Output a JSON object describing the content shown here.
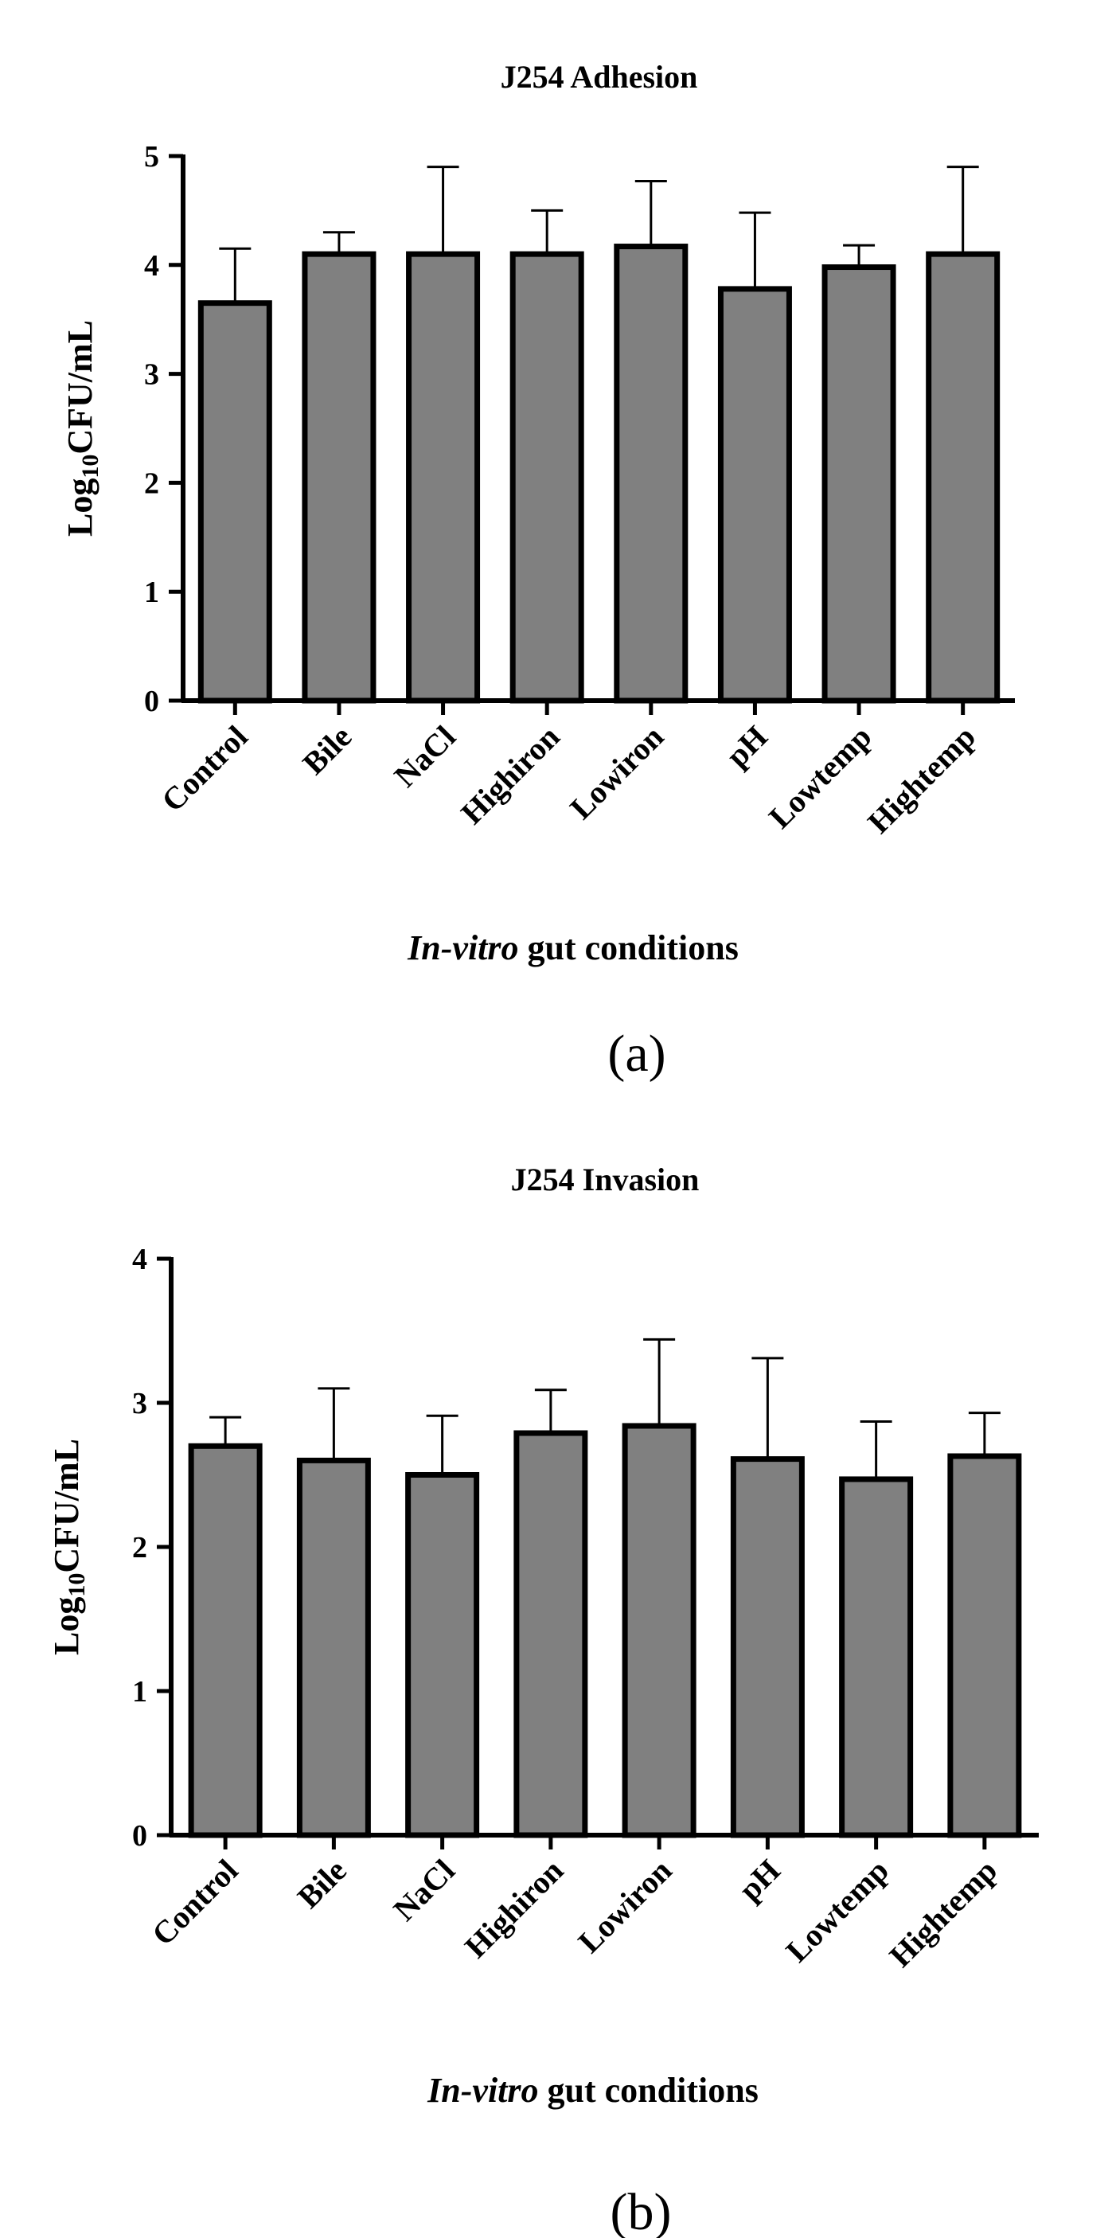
{
  "chart_data": [
    {
      "panel_label": "(a)",
      "type": "bar",
      "title": "J254 Adhesion",
      "ylabel": "CFU/mL",
      "ylabel_prefix": "Log",
      "ylabel_subscript": "10",
      "xlabel_italic": "In-vitro",
      "xlabel_rest": " gut conditions",
      "categories": [
        "Control",
        "Bile",
        "NaCl",
        "Highiron",
        "Lowiron",
        "pH",
        "Lowtemp",
        "Hightemp"
      ],
      "values": [
        3.65,
        4.1,
        4.1,
        4.1,
        4.17,
        3.78,
        3.98,
        4.1
      ],
      "error_upper": [
        0.5,
        0.2,
        0.8,
        0.4,
        0.6,
        0.7,
        0.2,
        0.8
      ],
      "ylim": [
        0,
        5
      ],
      "yticks": [
        "0",
        "1",
        "2",
        "3",
        "4",
        "5"
      ]
    },
    {
      "panel_label": "(b)",
      "type": "bar",
      "title": "J254 Invasion",
      "ylabel": "CFU/mL",
      "ylabel_prefix": "Log",
      "ylabel_subscript": "10",
      "xlabel_italic": "In-vitro",
      "xlabel_rest": " gut conditions",
      "categories": [
        "Control",
        "Bile",
        "NaCl",
        "Highiron",
        "Lowiron",
        "pH",
        "Lowtemp",
        "Hightemp"
      ],
      "values": [
        2.7,
        2.6,
        2.5,
        2.79,
        2.84,
        2.61,
        2.47,
        2.63
      ],
      "error_upper": [
        0.2,
        0.5,
        0.41,
        0.3,
        0.6,
        0.7,
        0.4,
        0.3
      ],
      "ylim": [
        0,
        4
      ],
      "yticks": [
        "0",
        "1",
        "2",
        "3",
        "4"
      ]
    }
  ],
  "colors": {
    "bar_fill": "#808080",
    "bar_stroke": "#000000",
    "axis": "#000000",
    "text": "#111111"
  }
}
